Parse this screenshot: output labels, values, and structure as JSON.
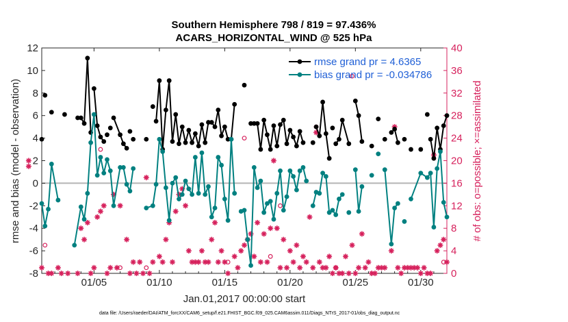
{
  "chart_data": {
    "type": "line",
    "title_line1": "Southern Hemisphere 798 / 819 = 97.436%",
    "title_line2": "ACARS_HORIZONTAL_WIND @ 525 hPa",
    "xlabel": "Jan.01,2017 00:00:00 start",
    "ylabel_left": "rmse and bias (model - observation)",
    "ylabel_right": "# of obs: o=possible; ×=assimilated",
    "xlim": [
      1.0,
      32.0
    ],
    "ylim_left": [
      -8,
      12
    ],
    "ylim_right": [
      0,
      40
    ],
    "x_ticks": [
      5,
      10,
      15,
      20,
      25,
      30
    ],
    "x_tick_labels": [
      "01/05",
      "01/10",
      "01/15",
      "01/20",
      "01/25",
      "01/30"
    ],
    "y_left_ticks": [
      -8,
      -6,
      -4,
      -2,
      0,
      2,
      4,
      6,
      8,
      10,
      12
    ],
    "y_right_ticks": [
      0,
      4,
      8,
      12,
      16,
      20,
      24,
      28,
      32,
      36,
      40
    ],
    "legend": {
      "position": "top-right",
      "rmse_label": "rmse grand pr = 4.6365",
      "bias_label": "bias grand pr = -0.034786"
    },
    "colors": {
      "rmse": "#000000",
      "bias": "#008080",
      "obs": "#d6215c",
      "legend_text": "#1f5fd6",
      "zero_line": "#b5b5b5"
    },
    "rmse_points": [
      [
        1.0,
        3.9
      ],
      [
        1.25,
        7.8
      ],
      [
        1.75,
        6.3
      ],
      [
        2.75,
        6.1
      ],
      [
        3.75,
        5.8
      ],
      [
        4.0,
        5.8
      ],
      [
        4.25,
        5.3
      ],
      [
        4.5,
        11.1
      ],
      [
        4.75,
        4.5
      ],
      [
        5.0,
        8.4
      ],
      [
        5.25,
        5.1
      ],
      [
        5.5,
        4.1
      ],
      [
        5.75,
        3.7
      ],
      [
        6.0,
        4.3
      ],
      [
        6.25,
        4.9
      ],
      [
        6.5,
        5.8
      ],
      [
        7.0,
        4.3
      ],
      [
        7.25,
        3.5
      ],
      [
        7.5,
        3.1
      ],
      [
        7.75,
        4.6
      ],
      [
        8.0,
        3.9
      ],
      [
        9.0,
        3.9
      ],
      [
        9.5,
        6.8
      ],
      [
        9.75,
        5.5
      ],
      [
        10.0,
        9.1
      ],
      [
        10.25,
        3.0
      ],
      [
        10.5,
        6.5
      ],
      [
        10.75,
        9.1
      ],
      [
        11.0,
        3.7
      ],
      [
        11.25,
        6.1
      ],
      [
        11.5,
        3.5
      ],
      [
        11.75,
        5.0
      ],
      [
        12.0,
        3.6
      ],
      [
        12.25,
        4.7
      ],
      [
        12.5,
        3.6
      ],
      [
        12.75,
        4.4
      ],
      [
        13.0,
        3.3
      ],
      [
        13.25,
        5.2
      ],
      [
        13.5,
        3.6
      ],
      [
        13.75,
        5.4
      ],
      [
        14.0,
        5.4
      ],
      [
        14.25,
        5.0
      ],
      [
        14.5,
        6.5
      ],
      [
        14.75,
        4.2
      ],
      [
        15.0,
        5.0
      ],
      [
        15.25,
        3.9
      ],
      [
        15.5,
        3.9
      ],
      [
        15.75,
        7.0
      ],
      [
        16.5,
        8.7
      ],
      [
        17.0,
        5.3
      ],
      [
        17.25,
        5.3
      ],
      [
        17.5,
        5.3
      ],
      [
        17.75,
        3.0
      ],
      [
        18.0,
        5.6
      ],
      [
        18.25,
        4.3
      ],
      [
        18.5,
        3.0
      ],
      [
        18.75,
        5.1
      ],
      [
        19.0,
        3.3
      ],
      [
        19.25,
        5.2
      ],
      [
        19.5,
        5.6
      ],
      [
        19.75,
        3.5
      ],
      [
        20.0,
        4.7
      ],
      [
        20.25,
        4.1
      ],
      [
        20.5,
        3.3
      ],
      [
        20.75,
        4.6
      ],
      [
        21.0,
        3.6
      ],
      [
        21.75,
        3.6
      ],
      [
        22.0,
        5.0
      ],
      [
        22.25,
        4.2
      ],
      [
        22.5,
        7.2
      ],
      [
        22.75,
        4.4
      ],
      [
        23.0,
        2.2
      ],
      [
        23.25,
        4.9
      ],
      [
        23.5,
        3.5
      ],
      [
        23.75,
        3.9
      ],
      [
        24.0,
        5.6
      ],
      [
        24.5,
        3.5
      ],
      [
        25.0,
        7.3
      ],
      [
        25.25,
        6.0
      ],
      [
        25.5,
        3.7
      ],
      [
        26.25,
        3.3
      ],
      [
        26.75,
        5.7
      ],
      [
        27.25,
        3.9
      ],
      [
        27.75,
        4.5
      ],
      [
        28.0,
        4.8
      ],
      [
        28.25,
        3.6
      ],
      [
        28.75,
        3.9
      ],
      [
        29.25,
        3.0
      ],
      [
        30.0,
        3.0
      ],
      [
        30.5,
        6.1
      ],
      [
        30.75,
        3.9
      ],
      [
        31.0,
        2.2
      ],
      [
        31.25,
        4.9
      ],
      [
        31.5,
        3.0
      ],
      [
        31.75,
        5.1
      ],
      [
        32.0,
        6.0
      ]
    ],
    "rmse_line_segments": [
      [
        4.0,
        4.75
      ],
      [
        5.0,
        5.75
      ],
      [
        6.5,
        7.5
      ],
      [
        9.75,
        15.75
      ],
      [
        16.5,
        16.5
      ],
      [
        17.5,
        21.0
      ],
      [
        22.0,
        23.0
      ],
      [
        23.5,
        24.5
      ],
      [
        25.0,
        25.5
      ],
      [
        27.75,
        28.25
      ],
      [
        30.75,
        32.0
      ]
    ],
    "bias_points": [
      [
        1.0,
        -1.8
      ],
      [
        1.25,
        -3.8
      ],
      [
        1.5,
        -2.3
      ],
      [
        1.75,
        1.7
      ],
      [
        2.25,
        -1.5
      ],
      [
        3.5,
        -5.5
      ],
      [
        4.0,
        -2.1
      ],
      [
        4.25,
        -3.2
      ],
      [
        4.5,
        -0.9
      ],
      [
        4.75,
        3.6
      ],
      [
        5.0,
        6.1
      ],
      [
        5.25,
        0.7
      ],
      [
        5.5,
        2.3
      ],
      [
        5.75,
        0.9
      ],
      [
        6.0,
        2.1
      ],
      [
        6.25,
        1.1
      ],
      [
        6.5,
        -2.0
      ],
      [
        7.0,
        1.4
      ],
      [
        7.25,
        1.4
      ],
      [
        7.5,
        -0.1
      ],
      [
        7.75,
        -0.7
      ],
      [
        8.0,
        1.3
      ],
      [
        9.0,
        -2.2
      ],
      [
        9.5,
        -2.0
      ],
      [
        9.75,
        -0.1
      ],
      [
        10.0,
        3.9
      ],
      [
        10.25,
        2.8
      ],
      [
        10.5,
        -0.4
      ],
      [
        10.75,
        -3.3
      ],
      [
        11.0,
        0.0
      ],
      [
        11.25,
        0.5
      ],
      [
        11.5,
        -1.4
      ],
      [
        11.75,
        -1.0
      ],
      [
        12.0,
        0.2
      ],
      [
        12.25,
        -0.5
      ],
      [
        12.5,
        -1.0
      ],
      [
        12.75,
        2.3
      ],
      [
        13.0,
        -0.9
      ],
      [
        13.25,
        2.7
      ],
      [
        13.5,
        -1.0
      ],
      [
        13.75,
        -0.3
      ],
      [
        14.0,
        -3.0
      ],
      [
        14.25,
        -2.2
      ],
      [
        14.5,
        2.3
      ],
      [
        14.75,
        1.6
      ],
      [
        15.0,
        -1.4
      ],
      [
        15.25,
        -3.3
      ],
      [
        15.5,
        3.9
      ],
      [
        15.75,
        -0.9
      ],
      [
        16.25,
        -2.5
      ],
      [
        16.5,
        -2.4
      ],
      [
        16.75,
        -5.0
      ],
      [
        17.0,
        -7.3
      ],
      [
        17.25,
        1.4
      ],
      [
        17.5,
        -0.4
      ],
      [
        17.75,
        0.2
      ],
      [
        18.0,
        -2.6
      ],
      [
        18.25,
        -1.8
      ],
      [
        18.5,
        -1.6
      ],
      [
        18.75,
        -3.2
      ],
      [
        19.0,
        -0.9
      ],
      [
        19.25,
        1.1
      ],
      [
        19.5,
        -2.4
      ],
      [
        19.75,
        -1.2
      ],
      [
        20.0,
        1.1
      ],
      [
        20.25,
        0.6
      ],
      [
        20.5,
        -0.6
      ],
      [
        20.75,
        1.1
      ],
      [
        21.0,
        1.4
      ],
      [
        21.25,
        0.2
      ],
      [
        21.75,
        -2.0
      ],
      [
        22.0,
        -0.8
      ],
      [
        22.25,
        -0.9
      ],
      [
        22.5,
        0.9
      ],
      [
        22.75,
        0.6
      ],
      [
        23.0,
        -2.6
      ],
      [
        23.25,
        -2.4
      ],
      [
        23.5,
        -2.8
      ],
      [
        23.75,
        -1.4
      ],
      [
        24.0,
        -1.0
      ],
      [
        24.5,
        -2.6
      ],
      [
        25.0,
        1.2
      ],
      [
        25.25,
        -2.5
      ],
      [
        25.5,
        -0.3
      ],
      [
        26.25,
        0.7
      ],
      [
        26.75,
        2.6
      ],
      [
        27.25,
        1.2
      ],
      [
        27.75,
        -5.4
      ],
      [
        28.0,
        -2.2
      ],
      [
        28.25,
        -1.8
      ],
      [
        28.75,
        -3.4
      ],
      [
        29.25,
        -1.4
      ],
      [
        30.0,
        0.9
      ],
      [
        30.5,
        0.5
      ],
      [
        30.75,
        0.9
      ],
      [
        31.0,
        -3.9
      ],
      [
        31.25,
        1.3
      ],
      [
        31.5,
        2.8
      ],
      [
        31.75,
        -1.7
      ],
      [
        32.0,
        -3.0
      ]
    ],
    "bias_line_segments": [
      [
        1.0,
        2.25
      ],
      [
        3.5,
        8.0
      ],
      [
        9.0,
        15.75
      ],
      [
        16.25,
        21.25
      ],
      [
        21.75,
        24.0
      ],
      [
        25.0,
        25.5
      ],
      [
        27.25,
        28.25
      ],
      [
        29.25,
        32.0
      ]
    ],
    "obs_assimilated": [
      [
        0.0,
        20
      ],
      [
        0.0,
        19
      ],
      [
        1.0,
        1
      ],
      [
        1.5,
        0
      ],
      [
        1.75,
        0
      ],
      [
        2.25,
        1
      ],
      [
        2.5,
        0
      ],
      [
        3.0,
        0
      ],
      [
        3.75,
        0
      ],
      [
        4.0,
        8
      ],
      [
        4.25,
        6
      ],
      [
        4.5,
        9
      ],
      [
        4.75,
        0
      ],
      [
        5.0,
        1
      ],
      [
        5.25,
        10
      ],
      [
        5.5,
        11
      ],
      [
        5.75,
        12
      ],
      [
        6.0,
        0
      ],
      [
        6.25,
        1
      ],
      [
        6.5,
        14
      ],
      [
        6.75,
        1
      ],
      [
        7.0,
        12
      ],
      [
        7.5,
        6
      ],
      [
        7.75,
        0
      ],
      [
        8.0,
        2
      ],
      [
        8.25,
        0
      ],
      [
        8.5,
        2
      ],
      [
        8.75,
        0
      ],
      [
        9.0,
        17
      ],
      [
        9.25,
        0
      ],
      [
        9.5,
        2
      ],
      [
        10.0,
        3
      ],
      [
        10.25,
        2
      ],
      [
        10.5,
        6
      ],
      [
        10.75,
        9
      ],
      [
        11.0,
        2
      ],
      [
        11.25,
        11
      ],
      [
        11.5,
        14
      ],
      [
        11.75,
        15
      ],
      [
        12.0,
        12
      ],
      [
        12.25,
        4
      ],
      [
        12.5,
        2
      ],
      [
        12.75,
        2
      ],
      [
        13.0,
        2
      ],
      [
        13.25,
        4
      ],
      [
        13.5,
        2
      ],
      [
        13.75,
        2
      ],
      [
        14.0,
        6
      ],
      [
        14.25,
        9
      ],
      [
        14.5,
        2
      ],
      [
        14.75,
        4
      ],
      [
        15.0,
        2
      ],
      [
        15.25,
        0
      ],
      [
        15.75,
        3
      ],
      [
        16.0,
        1
      ],
      [
        16.25,
        4
      ],
      [
        16.5,
        5
      ],
      [
        16.75,
        6
      ],
      [
        17.0,
        7
      ],
      [
        17.25,
        3
      ],
      [
        17.5,
        9
      ],
      [
        17.75,
        2
      ],
      [
        18.0,
        7
      ],
      [
        18.25,
        2
      ],
      [
        18.5,
        8
      ],
      [
        18.75,
        20
      ],
      [
        19.0,
        8
      ],
      [
        19.25,
        1
      ],
      [
        19.5,
        6
      ],
      [
        19.75,
        1
      ],
      [
        20.0,
        4
      ],
      [
        20.25,
        2
      ],
      [
        20.5,
        5
      ],
      [
        20.75,
        1
      ],
      [
        21.0,
        3
      ],
      [
        21.25,
        2
      ],
      [
        21.5,
        10
      ],
      [
        21.75,
        1
      ],
      [
        22.0,
        25
      ],
      [
        22.25,
        2
      ],
      [
        22.5,
        1
      ],
      [
        22.75,
        1
      ],
      [
        23.0,
        3
      ],
      [
        23.25,
        0
      ],
      [
        23.5,
        1
      ],
      [
        23.75,
        0
      ],
      [
        24.0,
        0
      ],
      [
        24.25,
        3
      ],
      [
        24.5,
        0
      ],
      [
        24.75,
        5
      ],
      [
        25.0,
        0
      ],
      [
        25.25,
        1
      ],
      [
        25.5,
        7
      ],
      [
        25.75,
        1
      ],
      [
        26.0,
        2
      ],
      [
        26.25,
        0
      ],
      [
        26.5,
        0
      ],
      [
        26.75,
        1
      ],
      [
        27.0,
        1
      ],
      [
        27.25,
        1
      ],
      [
        27.75,
        4
      ],
      [
        28.0,
        26
      ],
      [
        28.25,
        1
      ],
      [
        28.5,
        0
      ],
      [
        28.75,
        1
      ],
      [
        29.0,
        1
      ],
      [
        29.25,
        1
      ],
      [
        29.5,
        1
      ],
      [
        29.75,
        1
      ],
      [
        30.0,
        0
      ],
      [
        30.25,
        1
      ],
      [
        30.5,
        0
      ],
      [
        30.75,
        0
      ],
      [
        31.0,
        21
      ],
      [
        31.25,
        4
      ],
      [
        31.5,
        5
      ],
      [
        31.75,
        6
      ],
      [
        32.0,
        2
      ]
    ],
    "obs_possible_only": [
      [
        1.25,
        5
      ],
      [
        5.5,
        22
      ],
      [
        7.0,
        1
      ],
      [
        9.0,
        1
      ],
      [
        15.25,
        2
      ],
      [
        16.5,
        24
      ],
      [
        18.5,
        3
      ],
      [
        19.25,
        12
      ],
      [
        22.0,
        26
      ],
      [
        23.5,
        1
      ],
      [
        24.75,
        35
      ],
      [
        31.75,
        2
      ]
    ]
  },
  "footer": {
    "data_file": "data file: /Users/raeder/DAI/ATM_forcXX/CAM6_setup/f.e21.FHIST_BGC.f09_025.CAM6assim.011/Diags_NTrS_2017-01/obs_diag_output.nc"
  }
}
